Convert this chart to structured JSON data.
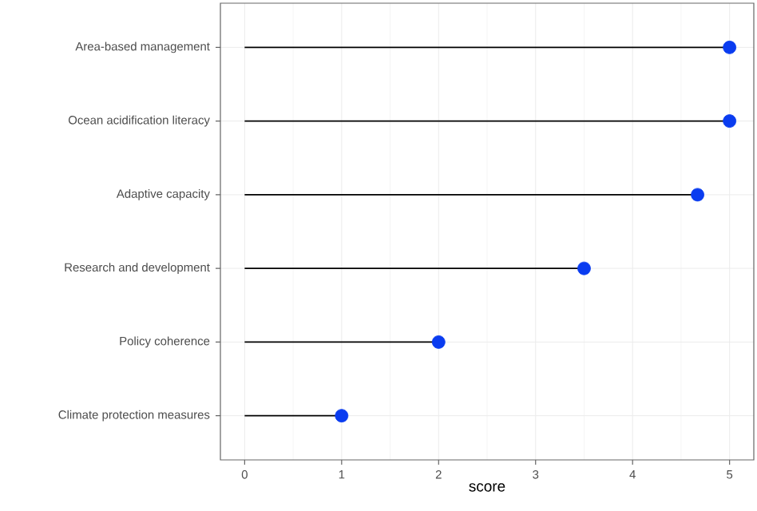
{
  "chart_data": {
    "type": "lollipop",
    "orientation": "horizontal",
    "xlabel": "score",
    "categories": [
      "Area-based management",
      "Ocean acidification literacy",
      "Adaptive capacity",
      "Research and development",
      "Policy coherence",
      "Climate protection measures"
    ],
    "values": [
      5,
      5,
      4.67,
      3.5,
      2,
      1
    ],
    "color": "#0a3cf0",
    "marker": "circle",
    "grid": true,
    "xlim": [
      -0.25,
      5.25
    ],
    "xticks": [
      0,
      1,
      2,
      3,
      4,
      5
    ]
  }
}
